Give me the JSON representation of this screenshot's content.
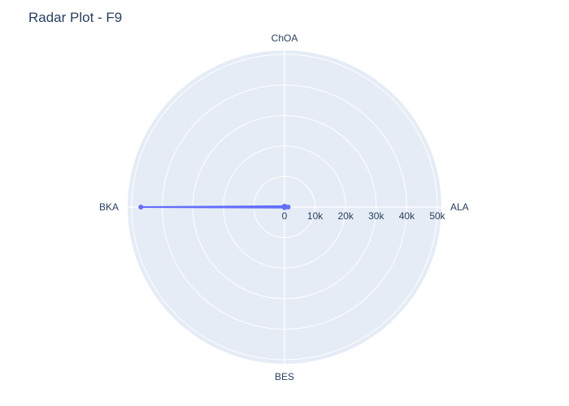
{
  "chart_data": {
    "type": "radar",
    "title": "Radar Plot - F9",
    "categories": [
      "ALA",
      "ChOA",
      "BKA",
      "BES"
    ],
    "series": [
      {
        "values": [
          1200,
          300,
          47000,
          200
        ]
      }
    ],
    "radial_range": [
      0,
      50000
    ],
    "radial_ticks": [
      0,
      10000,
      20000,
      30000,
      40000,
      50000
    ],
    "radial_tick_labels": [
      "0",
      "10k",
      "20k",
      "30k",
      "40k",
      "50k"
    ],
    "grid": true,
    "colors": {
      "polar_bg": "#e5ecf6",
      "grid": "#ffffff",
      "line": "#636efa",
      "text": "#2a3f5f"
    }
  }
}
